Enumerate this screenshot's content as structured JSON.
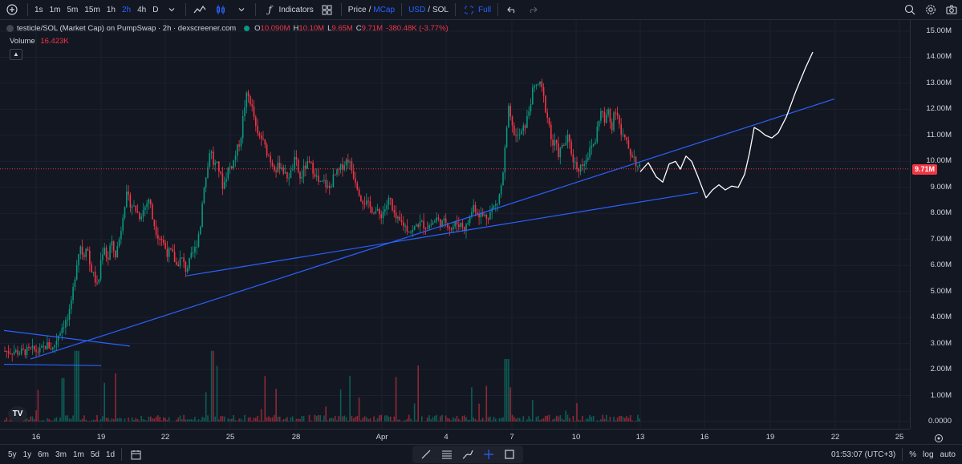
{
  "topbar": {
    "timeframes": [
      "1s",
      "1m",
      "5m",
      "15m",
      "1h",
      "2h",
      "4h",
      "D"
    ],
    "active_timeframe": "2h",
    "indicators_label": "Indicators",
    "price_label": "Price",
    "slash1": "/",
    "mcap_label": "MCap",
    "usd_label": "USD",
    "slash2": "/",
    "sol_label": "SOL",
    "full_label": "Full"
  },
  "legend": {
    "title": "testicle/SOL (Market Cap) on PumpSwap · 2h · dexscreener.com",
    "o_label": "O",
    "o_value": "10.090M",
    "h_label": "H",
    "h_value": "10.10M",
    "l_label": "L",
    "l_value": "9.65M",
    "c_label": "C",
    "c_value": "9.71M",
    "change": "-380.48K (-3.77%)",
    "volume_label": "Volume",
    "volume_value": "16.423K"
  },
  "price_axis": {
    "labels": [
      "15.00M",
      "14.00M",
      "13.00M",
      "12.00M",
      "11.00M",
      "10.00M",
      "9.00M",
      "8.00M",
      "7.00M",
      "6.00M",
      "5.00M",
      "4.00M",
      "3.00M",
      "2.00M",
      "1.00M",
      "0.0000"
    ],
    "current_price": "9.71M"
  },
  "time_axis": {
    "labels": [
      "16",
      "19",
      "22",
      "25",
      "28",
      "Apr",
      "4",
      "7",
      "10",
      "13",
      "16",
      "19",
      "22",
      "25"
    ]
  },
  "bottombar": {
    "ranges": [
      "5y",
      "1y",
      "6m",
      "3m",
      "1m",
      "5d",
      "1d"
    ],
    "clock": "01:53:07 (UTC+3)",
    "percent_label": "%",
    "log_label": "log",
    "auto_label": "auto"
  },
  "colors": {
    "up": "#089981",
    "down": "#f23645",
    "trendline": "#2962ff",
    "drawing": "#ffffff",
    "background": "#131722"
  },
  "chart_data": {
    "type": "candlestick",
    "ylim": [
      0,
      15.5
    ],
    "y_unit": "M",
    "current_price": 9.71,
    "close_path": [
      [
        0,
        2.75
      ],
      [
        8,
        2.7
      ],
      [
        16,
        2.7
      ],
      [
        24,
        2.65
      ],
      [
        32,
        2.7
      ],
      [
        40,
        2.75
      ],
      [
        50,
        2.7
      ],
      [
        58,
        2.95
      ],
      [
        66,
        2.8
      ],
      [
        72,
        3.3
      ],
      [
        78,
        3.7
      ],
      [
        84,
        3.9
      ],
      [
        88,
        4.3
      ],
      [
        92,
        5.3
      ],
      [
        96,
        6.2
      ],
      [
        100,
        6.8
      ],
      [
        104,
        6.3
      ],
      [
        108,
        6.9
      ],
      [
        112,
        6.0
      ],
      [
        118,
        5.5
      ],
      [
        122,
        5.1
      ],
      [
        126,
        6.3
      ],
      [
        130,
        6.8
      ],
      [
        134,
        6.1
      ],
      [
        138,
        6.9
      ],
      [
        144,
        6.4
      ],
      [
        150,
        7.2
      ],
      [
        154,
        8.2
      ],
      [
        158,
        8.7
      ],
      [
        162,
        8.4
      ],
      [
        168,
        8.2
      ],
      [
        174,
        7.9
      ],
      [
        180,
        8.2
      ],
      [
        186,
        8.6
      ],
      [
        190,
        7.8
      ],
      [
        196,
        7.2
      ],
      [
        202,
        7.0
      ],
      [
        208,
        6.5
      ],
      [
        214,
        6.5
      ],
      [
        220,
        6.0
      ],
      [
        226,
        6.3
      ],
      [
        232,
        5.8
      ],
      [
        238,
        6.3
      ],
      [
        244,
        6.7
      ],
      [
        250,
        7.6
      ],
      [
        254,
        9.1
      ],
      [
        258,
        9.5
      ],
      [
        262,
        10.6
      ],
      [
        266,
        9.9
      ],
      [
        272,
        9.8
      ],
      [
        278,
        9.0
      ],
      [
        284,
        9.7
      ],
      [
        290,
        9.9
      ],
      [
        296,
        10.5
      ],
      [
        300,
        10.9
      ],
      [
        304,
        12.0
      ],
      [
        308,
        12.6
      ],
      [
        312,
        12.3
      ],
      [
        316,
        11.8
      ],
      [
        320,
        11.0
      ],
      [
        326,
        10.9
      ],
      [
        332,
        10.4
      ],
      [
        338,
        10.0
      ],
      [
        344,
        9.7
      ],
      [
        350,
        9.9
      ],
      [
        356,
        9.4
      ],
      [
        362,
        9.5
      ],
      [
        368,
        10.1
      ],
      [
        374,
        9.3
      ],
      [
        380,
        9.8
      ],
      [
        386,
        9.9
      ],
      [
        392,
        9.6
      ],
      [
        398,
        9.1
      ],
      [
        404,
        9.2
      ],
      [
        410,
        8.9
      ],
      [
        416,
        9.4
      ],
      [
        422,
        9.6
      ],
      [
        428,
        9.9
      ],
      [
        434,
        10.1
      ],
      [
        438,
        9.7
      ],
      [
        444,
        9.2
      ],
      [
        450,
        8.6
      ],
      [
        456,
        8.4
      ],
      [
        462,
        8.2
      ],
      [
        468,
        8.1
      ],
      [
        474,
        7.9
      ],
      [
        480,
        8.2
      ],
      [
        486,
        8.6
      ],
      [
        490,
        7.9
      ],
      [
        496,
        7.7
      ],
      [
        502,
        7.6
      ],
      [
        508,
        7.4
      ],
      [
        514,
        7.3
      ],
      [
        520,
        7.6
      ],
      [
        526,
        7.6
      ],
      [
        532,
        7.5
      ],
      [
        538,
        7.6
      ],
      [
        544,
        7.8
      ],
      [
        550,
        7.6
      ],
      [
        556,
        7.7
      ],
      [
        562,
        7.4
      ],
      [
        568,
        7.6
      ],
      [
        574,
        7.6
      ],
      [
        580,
        7.4
      ],
      [
        586,
        7.9
      ],
      [
        590,
        8.3
      ],
      [
        596,
        8.0
      ],
      [
        602,
        7.9
      ],
      [
        608,
        7.9
      ],
      [
        614,
        8.2
      ],
      [
        620,
        8.4
      ],
      [
        626,
        9.2
      ],
      [
        630,
        10.7
      ],
      [
        634,
        12.0
      ],
      [
        638,
        11.3
      ],
      [
        644,
        10.9
      ],
      [
        650,
        11.1
      ],
      [
        656,
        11.5
      ],
      [
        660,
        12.1
      ],
      [
        664,
        12.7
      ],
      [
        668,
        12.9
      ],
      [
        672,
        13.0
      ],
      [
        676,
        12.7
      ],
      [
        680,
        12.0
      ],
      [
        684,
        11.5
      ],
      [
        688,
        10.6
      ],
      [
        692,
        10.7
      ],
      [
        696,
        10.3
      ],
      [
        702,
        10.6
      ],
      [
        708,
        10.9
      ],
      [
        714,
        10.1
      ],
      [
        720,
        9.7
      ],
      [
        726,
        9.9
      ],
      [
        732,
        10.2
      ],
      [
        738,
        10.6
      ],
      [
        742,
        10.8
      ],
      [
        746,
        11.6
      ],
      [
        750,
        12.0
      ],
      [
        754,
        11.4
      ],
      [
        758,
        12.0
      ],
      [
        762,
        11.2
      ],
      [
        766,
        12.1
      ],
      [
        770,
        11.8
      ],
      [
        774,
        11.0
      ],
      [
        778,
        10.9
      ],
      [
        782,
        10.6
      ],
      [
        786,
        10.3
      ],
      [
        790,
        10.2
      ],
      [
        794,
        9.8
      ],
      [
        798,
        9.71
      ]
    ],
    "volume_scale_max": 2.8,
    "annotations": [
      {
        "type": "trendline",
        "from": [
          "day 16",
          "2.4M"
        ],
        "to": [
          "day 13 Apr",
          "12.4M (proj.)"
        ]
      },
      {
        "type": "trendline",
        "from": [
          "day 22",
          "5.6M"
        ],
        "to": [
          "day 15 Apr",
          "8.8M"
        ]
      },
      {
        "type": "projection_path",
        "shape": "hand-drawn prediction to ~14.2M"
      }
    ]
  }
}
